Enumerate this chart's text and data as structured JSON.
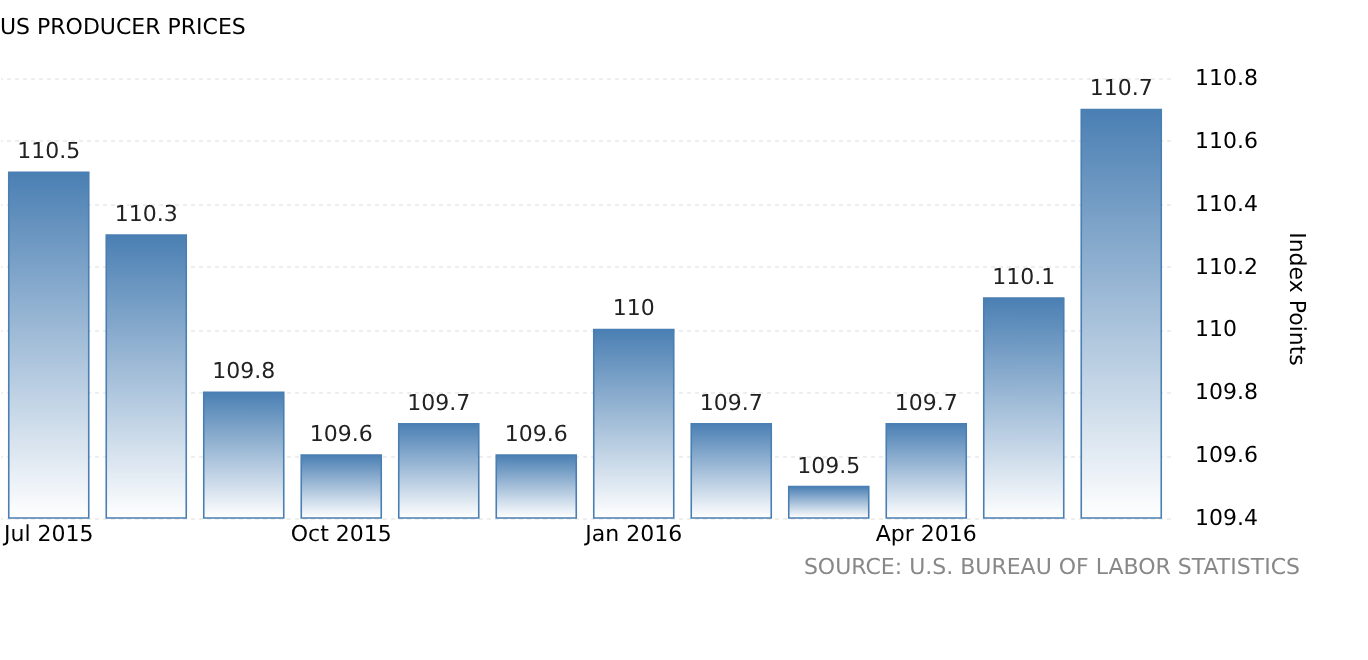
{
  "chart_data": {
    "type": "bar",
    "title": "US PRODUCER PRICES",
    "ylabel": "Index Points",
    "categories": [
      "Jul 2015",
      null,
      null,
      "Oct 2015",
      null,
      null,
      "Jan 2016",
      null,
      null,
      "Apr 2016",
      null,
      null
    ],
    "values": [
      110.5,
      110.3,
      109.8,
      109.6,
      109.7,
      109.6,
      110.0,
      109.7,
      109.5,
      109.7,
      110.1,
      110.7
    ],
    "color": "#4a7fb3",
    "ylim": [
      109.4,
      110.8
    ],
    "yticks": [
      109.4,
      109.6,
      109.8,
      110,
      110.2,
      110.4,
      110.6,
      110.8
    ],
    "grid": "y",
    "data_labels": true,
    "annotations": [
      "SOURCE: U.S. BUREAU OF LABOR STATISTICS"
    ]
  }
}
